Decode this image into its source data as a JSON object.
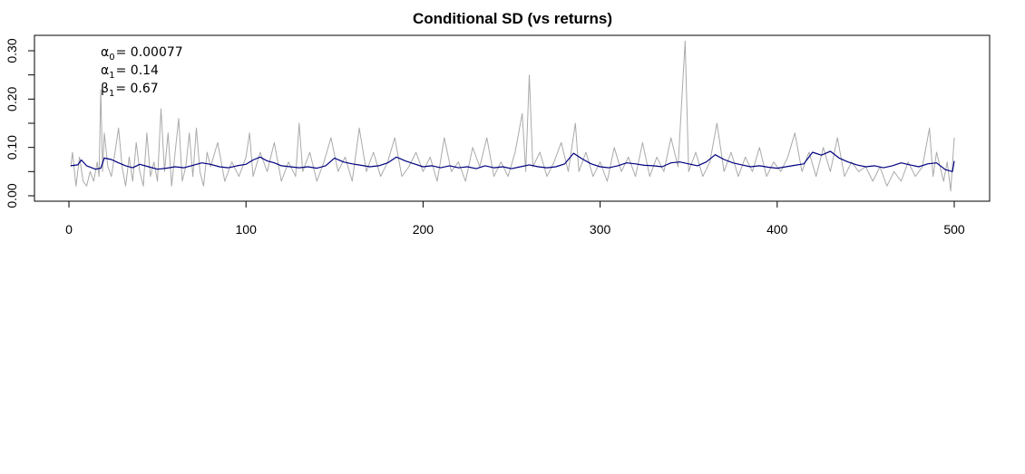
{
  "chart_data": {
    "type": "line",
    "title": "Conditional SD (vs returns)",
    "xlabel": "",
    "ylabel": "",
    "xlim": [
      0,
      500
    ],
    "ylim": [
      0,
      0.32
    ],
    "x_ticks": [
      "0",
      "100",
      "200",
      "300",
      "400",
      "500"
    ],
    "y_ticks": [
      "0.00",
      "0.10",
      "0.20",
      "0.30"
    ],
    "grid": false,
    "annotations": [
      {
        "sym": "α",
        "sub": "0",
        "value": "= 0.00077"
      },
      {
        "sym": "α",
        "sub": "1",
        "value": "= 0.14"
      },
      {
        "sym": "β",
        "sub": "1",
        "value": "= 0.67"
      }
    ],
    "series": [
      {
        "color": "#aaaaaa",
        "role": "absolute returns",
        "points": [
          [
            1,
            0.06
          ],
          [
            2,
            0.09
          ],
          [
            4,
            0.02
          ],
          [
            6,
            0.08
          ],
          [
            8,
            0.03
          ],
          [
            10,
            0.02
          ],
          [
            12,
            0.05
          ],
          [
            14,
            0.03
          ],
          [
            16,
            0.07
          ],
          [
            17,
            0.04
          ],
          [
            18,
            0.22
          ],
          [
            19,
            0.05
          ],
          [
            20,
            0.13
          ],
          [
            22,
            0.06
          ],
          [
            24,
            0.04
          ],
          [
            26,
            0.09
          ],
          [
            28,
            0.14
          ],
          [
            30,
            0.06
          ],
          [
            32,
            0.02
          ],
          [
            34,
            0.08
          ],
          [
            36,
            0.03
          ],
          [
            38,
            0.11
          ],
          [
            40,
            0.05
          ],
          [
            42,
            0.02
          ],
          [
            44,
            0.13
          ],
          [
            46,
            0.04
          ],
          [
            48,
            0.07
          ],
          [
            50,
            0.03
          ],
          [
            52,
            0.18
          ],
          [
            54,
            0.05
          ],
          [
            56,
            0.13
          ],
          [
            58,
            0.02
          ],
          [
            60,
            0.09
          ],
          [
            62,
            0.16
          ],
          [
            64,
            0.03
          ],
          [
            66,
            0.06
          ],
          [
            68,
            0.13
          ],
          [
            70,
            0.04
          ],
          [
            72,
            0.14
          ],
          [
            74,
            0.05
          ],
          [
            76,
            0.02
          ],
          [
            78,
            0.09
          ],
          [
            80,
            0.06
          ],
          [
            84,
            0.11
          ],
          [
            88,
            0.03
          ],
          [
            92,
            0.07
          ],
          [
            96,
            0.04
          ],
          [
            100,
            0.08
          ],
          [
            102,
            0.13
          ],
          [
            104,
            0.04
          ],
          [
            108,
            0.09
          ],
          [
            112,
            0.05
          ],
          [
            116,
            0.11
          ],
          [
            120,
            0.03
          ],
          [
            124,
            0.07
          ],
          [
            128,
            0.04
          ],
          [
            130,
            0.15
          ],
          [
            132,
            0.05
          ],
          [
            136,
            0.09
          ],
          [
            140,
            0.03
          ],
          [
            144,
            0.07
          ],
          [
            148,
            0.12
          ],
          [
            152,
            0.05
          ],
          [
            156,
            0.08
          ],
          [
            160,
            0.03
          ],
          [
            164,
            0.14
          ],
          [
            168,
            0.05
          ],
          [
            172,
            0.09
          ],
          [
            176,
            0.04
          ],
          [
            180,
            0.07
          ],
          [
            184,
            0.12
          ],
          [
            188,
            0.04
          ],
          [
            192,
            0.06
          ],
          [
            196,
            0.09
          ],
          [
            200,
            0.05
          ],
          [
            204,
            0.08
          ],
          [
            208,
            0.03
          ],
          [
            212,
            0.12
          ],
          [
            216,
            0.05
          ],
          [
            220,
            0.07
          ],
          [
            224,
            0.03
          ],
          [
            228,
            0.1
          ],
          [
            232,
            0.06
          ],
          [
            236,
            0.12
          ],
          [
            240,
            0.04
          ],
          [
            244,
            0.07
          ],
          [
            248,
            0.04
          ],
          [
            252,
            0.09
          ],
          [
            256,
            0.17
          ],
          [
            258,
            0.05
          ],
          [
            260,
            0.25
          ],
          [
            262,
            0.06
          ],
          [
            266,
            0.09
          ],
          [
            270,
            0.04
          ],
          [
            274,
            0.07
          ],
          [
            278,
            0.11
          ],
          [
            282,
            0.05
          ],
          [
            286,
            0.15
          ],
          [
            288,
            0.05
          ],
          [
            292,
            0.09
          ],
          [
            296,
            0.04
          ],
          [
            300,
            0.07
          ],
          [
            304,
            0.03
          ],
          [
            308,
            0.1
          ],
          [
            312,
            0.05
          ],
          [
            316,
            0.08
          ],
          [
            320,
            0.04
          ],
          [
            324,
            0.11
          ],
          [
            328,
            0.04
          ],
          [
            332,
            0.08
          ],
          [
            336,
            0.05
          ],
          [
            340,
            0.12
          ],
          [
            344,
            0.06
          ],
          [
            348,
            0.32
          ],
          [
            350,
            0.05
          ],
          [
            354,
            0.09
          ],
          [
            358,
            0.04
          ],
          [
            362,
            0.07
          ],
          [
            366,
            0.15
          ],
          [
            370,
            0.05
          ],
          [
            374,
            0.09
          ],
          [
            378,
            0.04
          ],
          [
            382,
            0.08
          ],
          [
            386,
            0.05
          ],
          [
            390,
            0.1
          ],
          [
            394,
            0.04
          ],
          [
            398,
            0.07
          ],
          [
            402,
            0.05
          ],
          [
            406,
            0.08
          ],
          [
            410,
            0.13
          ],
          [
            414,
            0.05
          ],
          [
            418,
            0.09
          ],
          [
            422,
            0.04
          ],
          [
            426,
            0.1
          ],
          [
            430,
            0.05
          ],
          [
            434,
            0.12
          ],
          [
            438,
            0.04
          ],
          [
            442,
            0.07
          ],
          [
            446,
            0.05
          ],
          [
            450,
            0.06
          ],
          [
            454,
            0.03
          ],
          [
            458,
            0.06
          ],
          [
            462,
            0.02
          ],
          [
            466,
            0.05
          ],
          [
            470,
            0.03
          ],
          [
            474,
            0.07
          ],
          [
            478,
            0.04
          ],
          [
            482,
            0.06
          ],
          [
            486,
            0.14
          ],
          [
            488,
            0.04
          ],
          [
            490,
            0.09
          ],
          [
            494,
            0.03
          ],
          [
            496,
            0.07
          ],
          [
            498,
            0.01
          ],
          [
            500,
            0.12
          ]
        ]
      },
      {
        "color": "#000080",
        "role": "conditional SD",
        "points": [
          [
            1,
            0.062
          ],
          [
            5,
            0.064
          ],
          [
            7,
            0.074
          ],
          [
            10,
            0.062
          ],
          [
            15,
            0.055
          ],
          [
            18,
            0.057
          ],
          [
            20,
            0.078
          ],
          [
            24,
            0.075
          ],
          [
            28,
            0.068
          ],
          [
            32,
            0.062
          ],
          [
            36,
            0.058
          ],
          [
            40,
            0.065
          ],
          [
            45,
            0.06
          ],
          [
            50,
            0.055
          ],
          [
            55,
            0.057
          ],
          [
            60,
            0.06
          ],
          [
            65,
            0.058
          ],
          [
            70,
            0.063
          ],
          [
            75,
            0.068
          ],
          [
            80,
            0.065
          ],
          [
            85,
            0.06
          ],
          [
            90,
            0.058
          ],
          [
            95,
            0.062
          ],
          [
            100,
            0.065
          ],
          [
            104,
            0.074
          ],
          [
            108,
            0.08
          ],
          [
            112,
            0.072
          ],
          [
            116,
            0.068
          ],
          [
            120,
            0.062
          ],
          [
            125,
            0.06
          ],
          [
            130,
            0.058
          ],
          [
            135,
            0.06
          ],
          [
            140,
            0.057
          ],
          [
            145,
            0.062
          ],
          [
            150,
            0.078
          ],
          [
            155,
            0.07
          ],
          [
            160,
            0.066
          ],
          [
            165,
            0.063
          ],
          [
            170,
            0.06
          ],
          [
            175,
            0.062
          ],
          [
            180,
            0.068
          ],
          [
            185,
            0.08
          ],
          [
            190,
            0.072
          ],
          [
            195,
            0.066
          ],
          [
            200,
            0.06
          ],
          [
            205,
            0.062
          ],
          [
            210,
            0.058
          ],
          [
            215,
            0.062
          ],
          [
            220,
            0.058
          ],
          [
            225,
            0.06
          ],
          [
            230,
            0.056
          ],
          [
            235,
            0.062
          ],
          [
            240,
            0.058
          ],
          [
            245,
            0.06
          ],
          [
            250,
            0.056
          ],
          [
            255,
            0.06
          ],
          [
            260,
            0.064
          ],
          [
            265,
            0.06
          ],
          [
            270,
            0.058
          ],
          [
            275,
            0.06
          ],
          [
            280,
            0.066
          ],
          [
            285,
            0.088
          ],
          [
            290,
            0.076
          ],
          [
            295,
            0.066
          ],
          [
            300,
            0.06
          ],
          [
            305,
            0.058
          ],
          [
            310,
            0.062
          ],
          [
            315,
            0.068
          ],
          [
            320,
            0.066
          ],
          [
            325,
            0.063
          ],
          [
            330,
            0.062
          ],
          [
            335,
            0.06
          ],
          [
            340,
            0.068
          ],
          [
            345,
            0.07
          ],
          [
            350,
            0.066
          ],
          [
            355,
            0.062
          ],
          [
            360,
            0.07
          ],
          [
            365,
            0.085
          ],
          [
            370,
            0.075
          ],
          [
            375,
            0.068
          ],
          [
            380,
            0.064
          ],
          [
            385,
            0.06
          ],
          [
            390,
            0.062
          ],
          [
            395,
            0.059
          ],
          [
            400,
            0.057
          ],
          [
            405,
            0.06
          ],
          [
            410,
            0.063
          ],
          [
            415,
            0.066
          ],
          [
            420,
            0.09
          ],
          [
            425,
            0.084
          ],
          [
            430,
            0.092
          ],
          [
            435,
            0.078
          ],
          [
            440,
            0.07
          ],
          [
            445,
            0.064
          ],
          [
            450,
            0.06
          ],
          [
            455,
            0.062
          ],
          [
            460,
            0.058
          ],
          [
            465,
            0.062
          ],
          [
            470,
            0.068
          ],
          [
            475,
            0.064
          ],
          [
            480,
            0.06
          ],
          [
            485,
            0.066
          ],
          [
            490,
            0.068
          ],
          [
            495,
            0.054
          ],
          [
            499,
            0.05
          ],
          [
            500,
            0.072
          ]
        ]
      }
    ]
  }
}
